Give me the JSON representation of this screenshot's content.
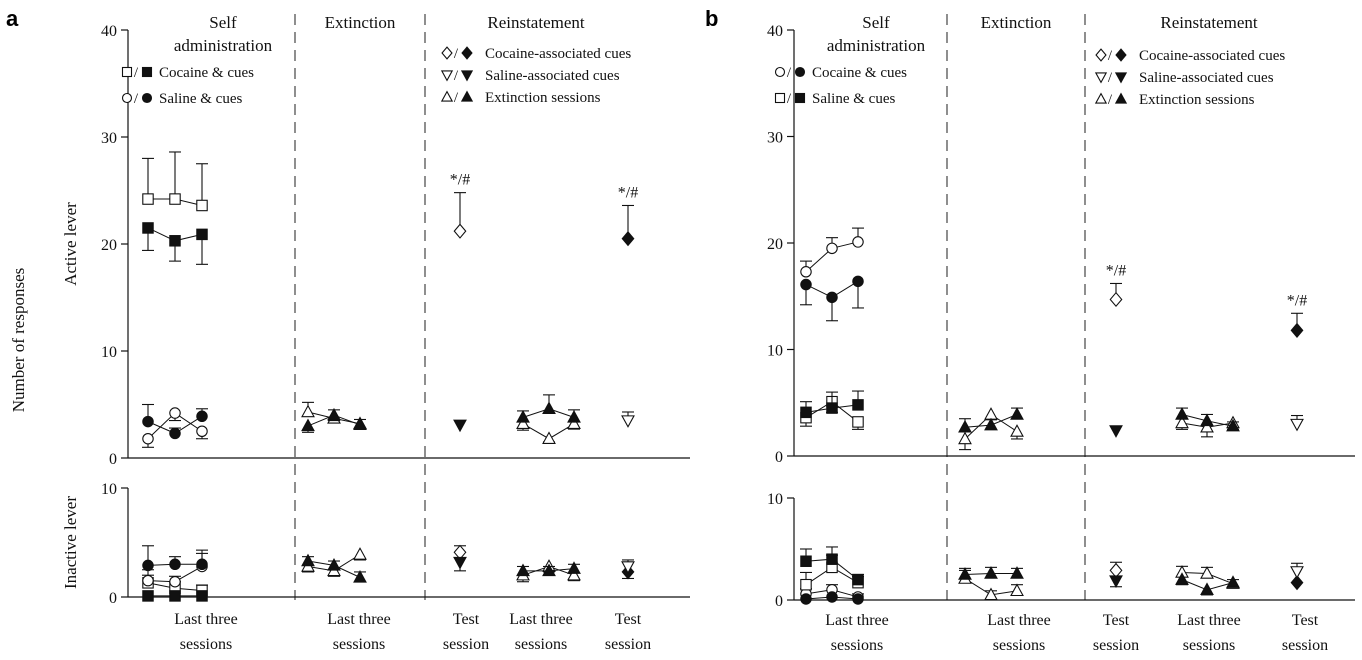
{
  "y_axis_label": "Number of responses",
  "headers": [
    "Self\nadministration",
    "Extinction",
    "Reinstatement"
  ],
  "x_labels": {
    "a": [
      "Last three\nsessions",
      "Last three\nsessions",
      "Test\nsession",
      "Last three\nsessions",
      "Test\nsession"
    ],
    "b": [
      "Last three\nsessions",
      "Last three\nsessions",
      "Test\nsession",
      "Last three\nsessions",
      "Test\nsession"
    ]
  },
  "annotation": "*/#",
  "chart_data": [
    {
      "panel": "a",
      "type": "scatter",
      "legend_sa": [
        {
          "label": "Cocaine & cues",
          "open_marker": "square",
          "filled_marker": "square"
        },
        {
          "label": "Saline & cues",
          "open_marker": "circle",
          "filled_marker": "circle"
        }
      ],
      "legend_reinst": [
        {
          "label": "Cocaine-associated cues",
          "open_marker": "diamond",
          "filled_marker": "diamond"
        },
        {
          "label": "Saline-associated cues",
          "open_marker": "triangle-down",
          "filled_marker": "triangle-down"
        },
        {
          "label": "Extinction sessions",
          "open_marker": "triangle-up",
          "filled_marker": "triangle-up"
        }
      ],
      "active": {
        "ylim": [
          0,
          40
        ],
        "yticks": [
          0,
          10,
          20,
          30,
          40
        ],
        "series": [
          {
            "marker": "square",
            "filled": false,
            "phase": "sa",
            "values": [
              24.2,
              24.2,
              23.6
            ],
            "errors": [
              3.8,
              4.4,
              3.9
            ],
            "err_dir": "up"
          },
          {
            "marker": "square",
            "filled": true,
            "phase": "sa",
            "values": [
              21.5,
              20.3,
              20.9
            ],
            "errors": [
              2.1,
              1.9,
              2.8
            ],
            "err_dir": "down"
          },
          {
            "marker": "circle",
            "filled": false,
            "phase": "sa",
            "values": [
              1.8,
              4.2,
              2.5
            ],
            "errors": [
              0.8,
              0.7,
              0.7
            ],
            "err_dir": "down"
          },
          {
            "marker": "circle",
            "filled": true,
            "phase": "sa",
            "values": [
              3.4,
              2.3,
              3.9
            ],
            "errors": [
              1.6,
              0.5,
              0.7
            ],
            "err_dir": "up"
          },
          {
            "marker": "triangle-up",
            "filled": false,
            "phase": "ext",
            "values": [
              4.3,
              3.7,
              3.2
            ],
            "errors": [
              0.9,
              0.8,
              0.4
            ],
            "err_dir": "up"
          },
          {
            "marker": "triangle-up",
            "filled": true,
            "phase": "ext",
            "values": [
              3.0,
              4.0,
              3.1
            ],
            "errors": [
              0.6,
              0.5,
              0.3
            ],
            "err_dir": "down"
          },
          {
            "marker": "triangle-up",
            "filled": false,
            "phase": "ext2",
            "values": [
              3.2,
              1.8,
              3.2
            ],
            "errors": [
              0.6,
              0.3,
              0.5
            ],
            "err_dir": "down"
          },
          {
            "marker": "triangle-up",
            "filled": true,
            "phase": "ext2",
            "values": [
              3.8,
              4.6,
              3.8
            ],
            "errors": [
              0.6,
              1.3,
              0.7
            ],
            "err_dir": "up"
          },
          {
            "marker": "diamond",
            "filled": false,
            "phase": "t1",
            "values": [
              21.2
            ],
            "errors": [
              3.6
            ],
            "err_dir": "up",
            "annot": true
          },
          {
            "marker": "triangle-down",
            "filled": true,
            "phase": "t1",
            "values": [
              3.1
            ],
            "errors": [
              0
            ],
            "err_dir": "up"
          },
          {
            "marker": "diamond",
            "filled": true,
            "phase": "t2",
            "values": [
              20.5
            ],
            "errors": [
              3.1
            ],
            "err_dir": "up",
            "annot": true
          },
          {
            "marker": "triangle-down",
            "filled": false,
            "phase": "t2",
            "values": [
              3.5
            ],
            "errors": [
              0.8
            ],
            "err_dir": "up"
          }
        ]
      },
      "inactive": {
        "ylim": [
          0,
          10
        ],
        "yticks": [
          0,
          10
        ],
        "series": [
          {
            "marker": "square",
            "filled": false,
            "phase": "sa",
            "values": [
              1.3,
              0.8,
              0.6
            ],
            "errors": [
              1.2,
              0.6,
              0.5
            ],
            "err_dir": "up"
          },
          {
            "marker": "square",
            "filled": true,
            "phase": "sa",
            "values": [
              0.1,
              0.1,
              0.1
            ],
            "errors": [
              0,
              0,
              0
            ],
            "err_dir": "up"
          },
          {
            "marker": "circle",
            "filled": false,
            "phase": "sa",
            "values": [
              1.5,
              1.4,
              2.8
            ],
            "errors": [
              0.5,
              0.5,
              1.5
            ],
            "err_dir": "up"
          },
          {
            "marker": "circle",
            "filled": true,
            "phase": "sa",
            "values": [
              2.9,
              3.0,
              3.0
            ],
            "errors": [
              1.8,
              0.7,
              1.0
            ],
            "err_dir": "up"
          },
          {
            "marker": "triangle-up",
            "filled": false,
            "phase": "ext",
            "values": [
              2.8,
              2.4,
              3.9
            ],
            "errors": [
              0.5,
              0.5,
              0.5
            ],
            "err_dir": "down"
          },
          {
            "marker": "triangle-up",
            "filled": true,
            "phase": "ext",
            "values": [
              3.3,
              2.9,
              1.8
            ],
            "errors": [
              0.4,
              0.4,
              0.5
            ],
            "err_dir": "up"
          },
          {
            "marker": "triangle-up",
            "filled": false,
            "phase": "ext2",
            "values": [
              2.0,
              2.8,
              2.0
            ],
            "errors": [
              0.6,
              0.5,
              0.5
            ],
            "err_dir": "down"
          },
          {
            "marker": "triangle-up",
            "filled": true,
            "phase": "ext2",
            "values": [
              2.4,
              2.4,
              2.6
            ],
            "errors": [
              0.4,
              0.4,
              0.4
            ],
            "err_dir": "up"
          },
          {
            "marker": "diamond",
            "filled": false,
            "phase": "t1",
            "values": [
              4.1
            ],
            "errors": [
              0.6
            ],
            "err_dir": "up"
          },
          {
            "marker": "triangle-down",
            "filled": true,
            "phase": "t1",
            "values": [
              3.2
            ],
            "errors": [
              0.8
            ],
            "err_dir": "down"
          },
          {
            "marker": "diamond",
            "filled": true,
            "phase": "t2",
            "values": [
              2.3
            ],
            "errors": [
              0.6
            ],
            "err_dir": "down"
          },
          {
            "marker": "triangle-down",
            "filled": false,
            "phase": "t2",
            "values": [
              2.8
            ],
            "errors": [
              0.6
            ],
            "err_dir": "up"
          }
        ]
      }
    },
    {
      "panel": "b",
      "type": "scatter",
      "legend_sa": [
        {
          "label": "Cocaine & cues",
          "open_marker": "circle",
          "filled_marker": "circle"
        },
        {
          "label": "Saline & cues",
          "open_marker": "square",
          "filled_marker": "square"
        }
      ],
      "legend_reinst": [
        {
          "label": "Cocaine-associated cues",
          "open_marker": "diamond",
          "filled_marker": "diamond"
        },
        {
          "label": "Saline-associated cues",
          "open_marker": "triangle-down",
          "filled_marker": "triangle-down"
        },
        {
          "label": "Extinction sessions",
          "open_marker": "triangle-up",
          "filled_marker": "triangle-up"
        }
      ],
      "active": {
        "ylim": [
          0,
          40
        ],
        "yticks": [
          0,
          10,
          20,
          30,
          40
        ],
        "series": [
          {
            "marker": "circle",
            "filled": false,
            "phase": "sa",
            "values": [
              17.3,
              19.5,
              20.1
            ],
            "errors": [
              1.0,
              1.0,
              1.3
            ],
            "err_dir": "up"
          },
          {
            "marker": "circle",
            "filled": true,
            "phase": "sa",
            "values": [
              16.1,
              14.9,
              16.4
            ],
            "errors": [
              1.9,
              2.2,
              2.5
            ],
            "err_dir": "down"
          },
          {
            "marker": "square",
            "filled": false,
            "phase": "sa",
            "values": [
              3.6,
              5.1,
              3.2
            ],
            "errors": [
              0.8,
              1.0,
              0.7
            ],
            "err_dir": "down"
          },
          {
            "marker": "square",
            "filled": true,
            "phase": "sa",
            "values": [
              4.1,
              4.5,
              4.8
            ],
            "errors": [
              1.0,
              1.5,
              1.3
            ],
            "err_dir": "up"
          },
          {
            "marker": "triangle-up",
            "filled": false,
            "phase": "ext",
            "values": [
              1.6,
              3.9,
              2.3
            ],
            "errors": [
              1.0,
              0.4,
              0.7
            ],
            "err_dir": "down"
          },
          {
            "marker": "triangle-up",
            "filled": true,
            "phase": "ext",
            "values": [
              2.7,
              2.9,
              3.9
            ],
            "errors": [
              0.8,
              0.5,
              0.6
            ],
            "err_dir": "up"
          },
          {
            "marker": "triangle-up",
            "filled": false,
            "phase": "ext2",
            "values": [
              3.1,
              2.7,
              3.1
            ],
            "errors": [
              0.6,
              0.9,
              0.6
            ],
            "err_dir": "down"
          },
          {
            "marker": "triangle-up",
            "filled": true,
            "phase": "ext2",
            "values": [
              3.9,
              3.3,
              2.8
            ],
            "errors": [
              0.6,
              0.6,
              0.4
            ],
            "err_dir": "up"
          },
          {
            "marker": "diamond",
            "filled": false,
            "phase": "t1",
            "values": [
              14.7
            ],
            "errors": [
              1.5
            ],
            "err_dir": "up",
            "annot": true
          },
          {
            "marker": "triangle-down",
            "filled": true,
            "phase": "t1",
            "values": [
              2.4
            ],
            "errors": [
              0
            ],
            "err_dir": "up"
          },
          {
            "marker": "diamond",
            "filled": true,
            "phase": "t2",
            "values": [
              11.8
            ],
            "errors": [
              1.6
            ],
            "err_dir": "up",
            "annot": true
          },
          {
            "marker": "triangle-down",
            "filled": false,
            "phase": "t2",
            "values": [
              3.0
            ],
            "errors": [
              0.8
            ],
            "err_dir": "up"
          }
        ]
      },
      "inactive": {
        "ylim": [
          0,
          10
        ],
        "yticks": [
          0,
          10
        ],
        "series": [
          {
            "marker": "circle",
            "filled": false,
            "phase": "sa",
            "values": [
              0.6,
              1.0,
              0.3
            ],
            "errors": [
              0.5,
              0.5,
              0.3
            ],
            "err_dir": "up"
          },
          {
            "marker": "circle",
            "filled": true,
            "phase": "sa",
            "values": [
              0.1,
              0.3,
              0.1
            ],
            "errors": [
              0,
              0,
              0
            ],
            "err_dir": "up"
          },
          {
            "marker": "square",
            "filled": false,
            "phase": "sa",
            "values": [
              1.5,
              3.2,
              1.7
            ],
            "errors": [
              1.2,
              1.2,
              0.6
            ],
            "err_dir": "up"
          },
          {
            "marker": "square",
            "filled": true,
            "phase": "sa",
            "values": [
              3.8,
              4.0,
              2.0
            ],
            "errors": [
              1.2,
              1.2,
              0.5
            ],
            "err_dir": "up"
          },
          {
            "marker": "triangle-up",
            "filled": false,
            "phase": "ext",
            "values": [
              2.1,
              0.5,
              0.9
            ],
            "errors": [
              0.8,
              0.4,
              0.6
            ],
            "err_dir": "up"
          },
          {
            "marker": "triangle-up",
            "filled": true,
            "phase": "ext",
            "values": [
              2.5,
              2.6,
              2.6
            ],
            "errors": [
              0.6,
              0.6,
              0.5
            ],
            "err_dir": "up"
          },
          {
            "marker": "triangle-up",
            "filled": false,
            "phase": "ext2",
            "values": [
              2.7,
              2.6,
              1.6
            ],
            "errors": [
              0.6,
              0.6,
              0.4
            ],
            "err_dir": "up"
          },
          {
            "marker": "triangle-up",
            "filled": true,
            "phase": "ext2",
            "values": [
              2.0,
              1.0,
              1.7
            ],
            "errors": [
              0.5,
              0.5,
              0.4
            ],
            "err_dir": "down"
          },
          {
            "marker": "diamond",
            "filled": false,
            "phase": "t1",
            "values": [
              2.9
            ],
            "errors": [
              0.8
            ],
            "err_dir": "up"
          },
          {
            "marker": "triangle-down",
            "filled": true,
            "phase": "t1",
            "values": [
              1.9
            ],
            "errors": [
              0.6
            ],
            "err_dir": "down"
          },
          {
            "marker": "diamond",
            "filled": true,
            "phase": "t2",
            "values": [
              1.7
            ],
            "errors": [
              0
            ],
            "err_dir": "up"
          },
          {
            "marker": "triangle-down",
            "filled": false,
            "phase": "t2",
            "values": [
              2.8
            ],
            "errors": [
              0.8
            ],
            "err_dir": "up"
          }
        ]
      }
    }
  ]
}
